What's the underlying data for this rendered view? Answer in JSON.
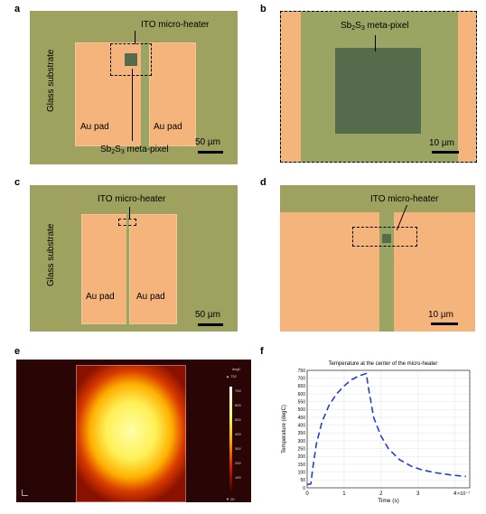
{
  "panels": {
    "a": {
      "label": "a",
      "heater_label": "ITO micro-heater",
      "substrate_label": "Glass substrate",
      "pad_left": "Au pad",
      "pad_right": "Au pad",
      "pixel_label_main": "Sb",
      "pixel_label_sub1": "2",
      "pixel_label_mid": "S",
      "pixel_label_sub2": "3",
      "pixel_label_end": " meta-pixel",
      "scale": "50 µm"
    },
    "b": {
      "label": "b",
      "pixel_label_main": "Sb",
      "pixel_label_sub1": "2",
      "pixel_label_mid": "S",
      "pixel_label_sub2": "3",
      "pixel_label_end": " meta-pixel",
      "scale": "10 µm"
    },
    "c": {
      "label": "c",
      "heater_label": "ITO micro-heater",
      "substrate_label": "Glass substrate",
      "pad_left": "Au pad",
      "pad_right": "Au pad",
      "scale": "50 µm"
    },
    "d": {
      "label": "d",
      "heater_label": "ITO micro-heater",
      "scale": "10 µm"
    },
    "e": {
      "label": "e",
      "colorbar_unit": "degC",
      "colorbar_max": "▲ 732",
      "colorbar_min": "▼ 20",
      "colorbar_ticks": [
        "700",
        "600",
        "500",
        "400",
        "300",
        "200",
        "100"
      ]
    },
    "f": {
      "label": "f"
    }
  },
  "colors": {
    "glass": "#9ea25e",
    "gold": "#f6b47d",
    "ito": "#9aa563",
    "pixel_dark": "#566a4c",
    "curve": "#1f3fd6"
  },
  "chart_data": {
    "type": "line",
    "title": "Temperature at the center of the micro-heater",
    "xlabel": "Time (s)",
    "ylabel": "Temperature (degC)",
    "x_exponent_label": "×10⁻⁷",
    "xlim": [
      0,
      4.4
    ],
    "ylim": [
      0,
      750
    ],
    "xticks": [
      0,
      1,
      2,
      3,
      4
    ],
    "yticks": [
      0,
      50,
      100,
      150,
      200,
      250,
      300,
      350,
      400,
      450,
      500,
      550,
      600,
      650,
      700,
      750
    ],
    "grid": true,
    "series": [
      {
        "style": "dashed",
        "x": [
          0,
          0.1,
          0.15,
          0.25,
          0.4,
          0.6,
          0.8,
          1.0,
          1.2,
          1.4,
          1.6,
          1.65,
          1.8,
          2.0,
          2.2,
          2.5,
          2.8,
          3.1,
          3.5,
          3.9,
          4.3
        ],
        "y": [
          20,
          25,
          120,
          280,
          420,
          530,
          600,
          650,
          690,
          715,
          730,
          650,
          450,
          330,
          250,
          180,
          140,
          115,
          95,
          82,
          72
        ]
      }
    ]
  }
}
